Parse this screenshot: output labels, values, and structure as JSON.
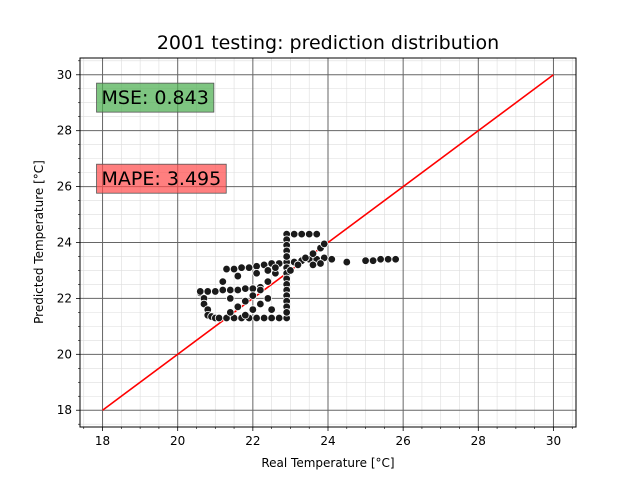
{
  "chart_data": {
    "type": "scatter",
    "title": "2001 testing: prediction distribution",
    "xlabel": "Real Temperature [°C]",
    "ylabel": "Predicted Temperature [°C]",
    "xlim": [
      17.4,
      30.6
    ],
    "ylim": [
      17.4,
      30.6
    ],
    "xticks": [
      18,
      20,
      22,
      24,
      26,
      28,
      30
    ],
    "yticks": [
      18,
      20,
      22,
      24,
      26,
      28,
      30
    ],
    "grid": true,
    "minor_grid": true,
    "annotations": {
      "mse": {
        "label": "MSE: 0.843",
        "color": "#4caf50",
        "x": 18,
        "y": 29.2
      },
      "mape": {
        "label": "MAPE: 3.495",
        "color": "#ff4d4d",
        "x": 18,
        "y": 26.3
      }
    },
    "reference_line": {
      "x": [
        18,
        30
      ],
      "y": [
        18,
        30
      ],
      "color": "#ff0000"
    },
    "points": [
      [
        20.6,
        22.2
      ],
      [
        20.7,
        22.0
      ],
      [
        20.7,
        21.8
      ],
      [
        20.8,
        21.6
      ],
      [
        20.8,
        21.4
      ],
      [
        20.9,
        21.35
      ],
      [
        21.0,
        21.3
      ],
      [
        21.1,
        21.3
      ],
      [
        21.3,
        21.3
      ],
      [
        21.5,
        21.3
      ],
      [
        21.7,
        21.3
      ],
      [
        21.9,
        21.3
      ],
      [
        22.1,
        21.3
      ],
      [
        22.3,
        21.3
      ],
      [
        22.5,
        21.3
      ],
      [
        22.7,
        21.3
      ],
      [
        22.9,
        21.3
      ],
      [
        20.6,
        22.25
      ],
      [
        20.8,
        22.25
      ],
      [
        21.0,
        22.25
      ],
      [
        21.2,
        22.3
      ],
      [
        21.4,
        22.3
      ],
      [
        21.6,
        22.3
      ],
      [
        21.8,
        22.35
      ],
      [
        22.0,
        22.35
      ],
      [
        22.2,
        22.4
      ],
      [
        21.3,
        23.05
      ],
      [
        21.5,
        23.05
      ],
      [
        21.7,
        23.1
      ],
      [
        21.9,
        23.1
      ],
      [
        22.1,
        23.15
      ],
      [
        22.3,
        23.2
      ],
      [
        22.5,
        23.25
      ],
      [
        22.7,
        23.25
      ],
      [
        22.9,
        23.3
      ],
      [
        23.1,
        23.3
      ],
      [
        23.3,
        23.35
      ],
      [
        23.5,
        23.4
      ],
      [
        23.7,
        23.4
      ],
      [
        23.9,
        23.45
      ],
      [
        24.1,
        23.4
      ],
      [
        22.9,
        24.3
      ],
      [
        23.1,
        24.3
      ],
      [
        23.3,
        24.3
      ],
      [
        23.5,
        24.3
      ],
      [
        23.7,
        24.3
      ],
      [
        22.9,
        24.1
      ],
      [
        22.9,
        23.9
      ],
      [
        22.9,
        23.7
      ],
      [
        22.9,
        23.5
      ],
      [
        22.9,
        23.1
      ],
      [
        22.9,
        22.9
      ],
      [
        22.9,
        22.7
      ],
      [
        22.9,
        22.5
      ],
      [
        22.9,
        22.3
      ],
      [
        22.9,
        22.1
      ],
      [
        22.9,
        21.9
      ],
      [
        22.9,
        21.7
      ],
      [
        22.9,
        21.5
      ],
      [
        21.4,
        21.5
      ],
      [
        21.6,
        21.7
      ],
      [
        21.8,
        21.9
      ],
      [
        22.0,
        22.1
      ],
      [
        22.2,
        22.3
      ],
      [
        22.4,
        22.6
      ],
      [
        22.6,
        22.9
      ],
      [
        21.2,
        22.6
      ],
      [
        21.6,
        22.8
      ],
      [
        22.1,
        22.9
      ],
      [
        22.4,
        23.0
      ],
      [
        22.6,
        23.1
      ],
      [
        22.2,
        21.8
      ],
      [
        22.4,
        22.0
      ],
      [
        22.0,
        21.6
      ],
      [
        21.8,
        21.4
      ],
      [
        22.5,
        21.6
      ],
      [
        21.4,
        22.0
      ],
      [
        23.4,
        23.45
      ],
      [
        23.6,
        23.6
      ],
      [
        23.8,
        23.8
      ],
      [
        23.9,
        23.95
      ],
      [
        23.6,
        23.2
      ],
      [
        23.8,
        23.25
      ],
      [
        24.5,
        23.3
      ],
      [
        25.0,
        23.35
      ],
      [
        25.2,
        23.35
      ],
      [
        25.4,
        23.4
      ],
      [
        25.6,
        23.4
      ],
      [
        25.8,
        23.4
      ],
      [
        23.0,
        23.0
      ],
      [
        23.2,
        23.2
      ]
    ]
  }
}
